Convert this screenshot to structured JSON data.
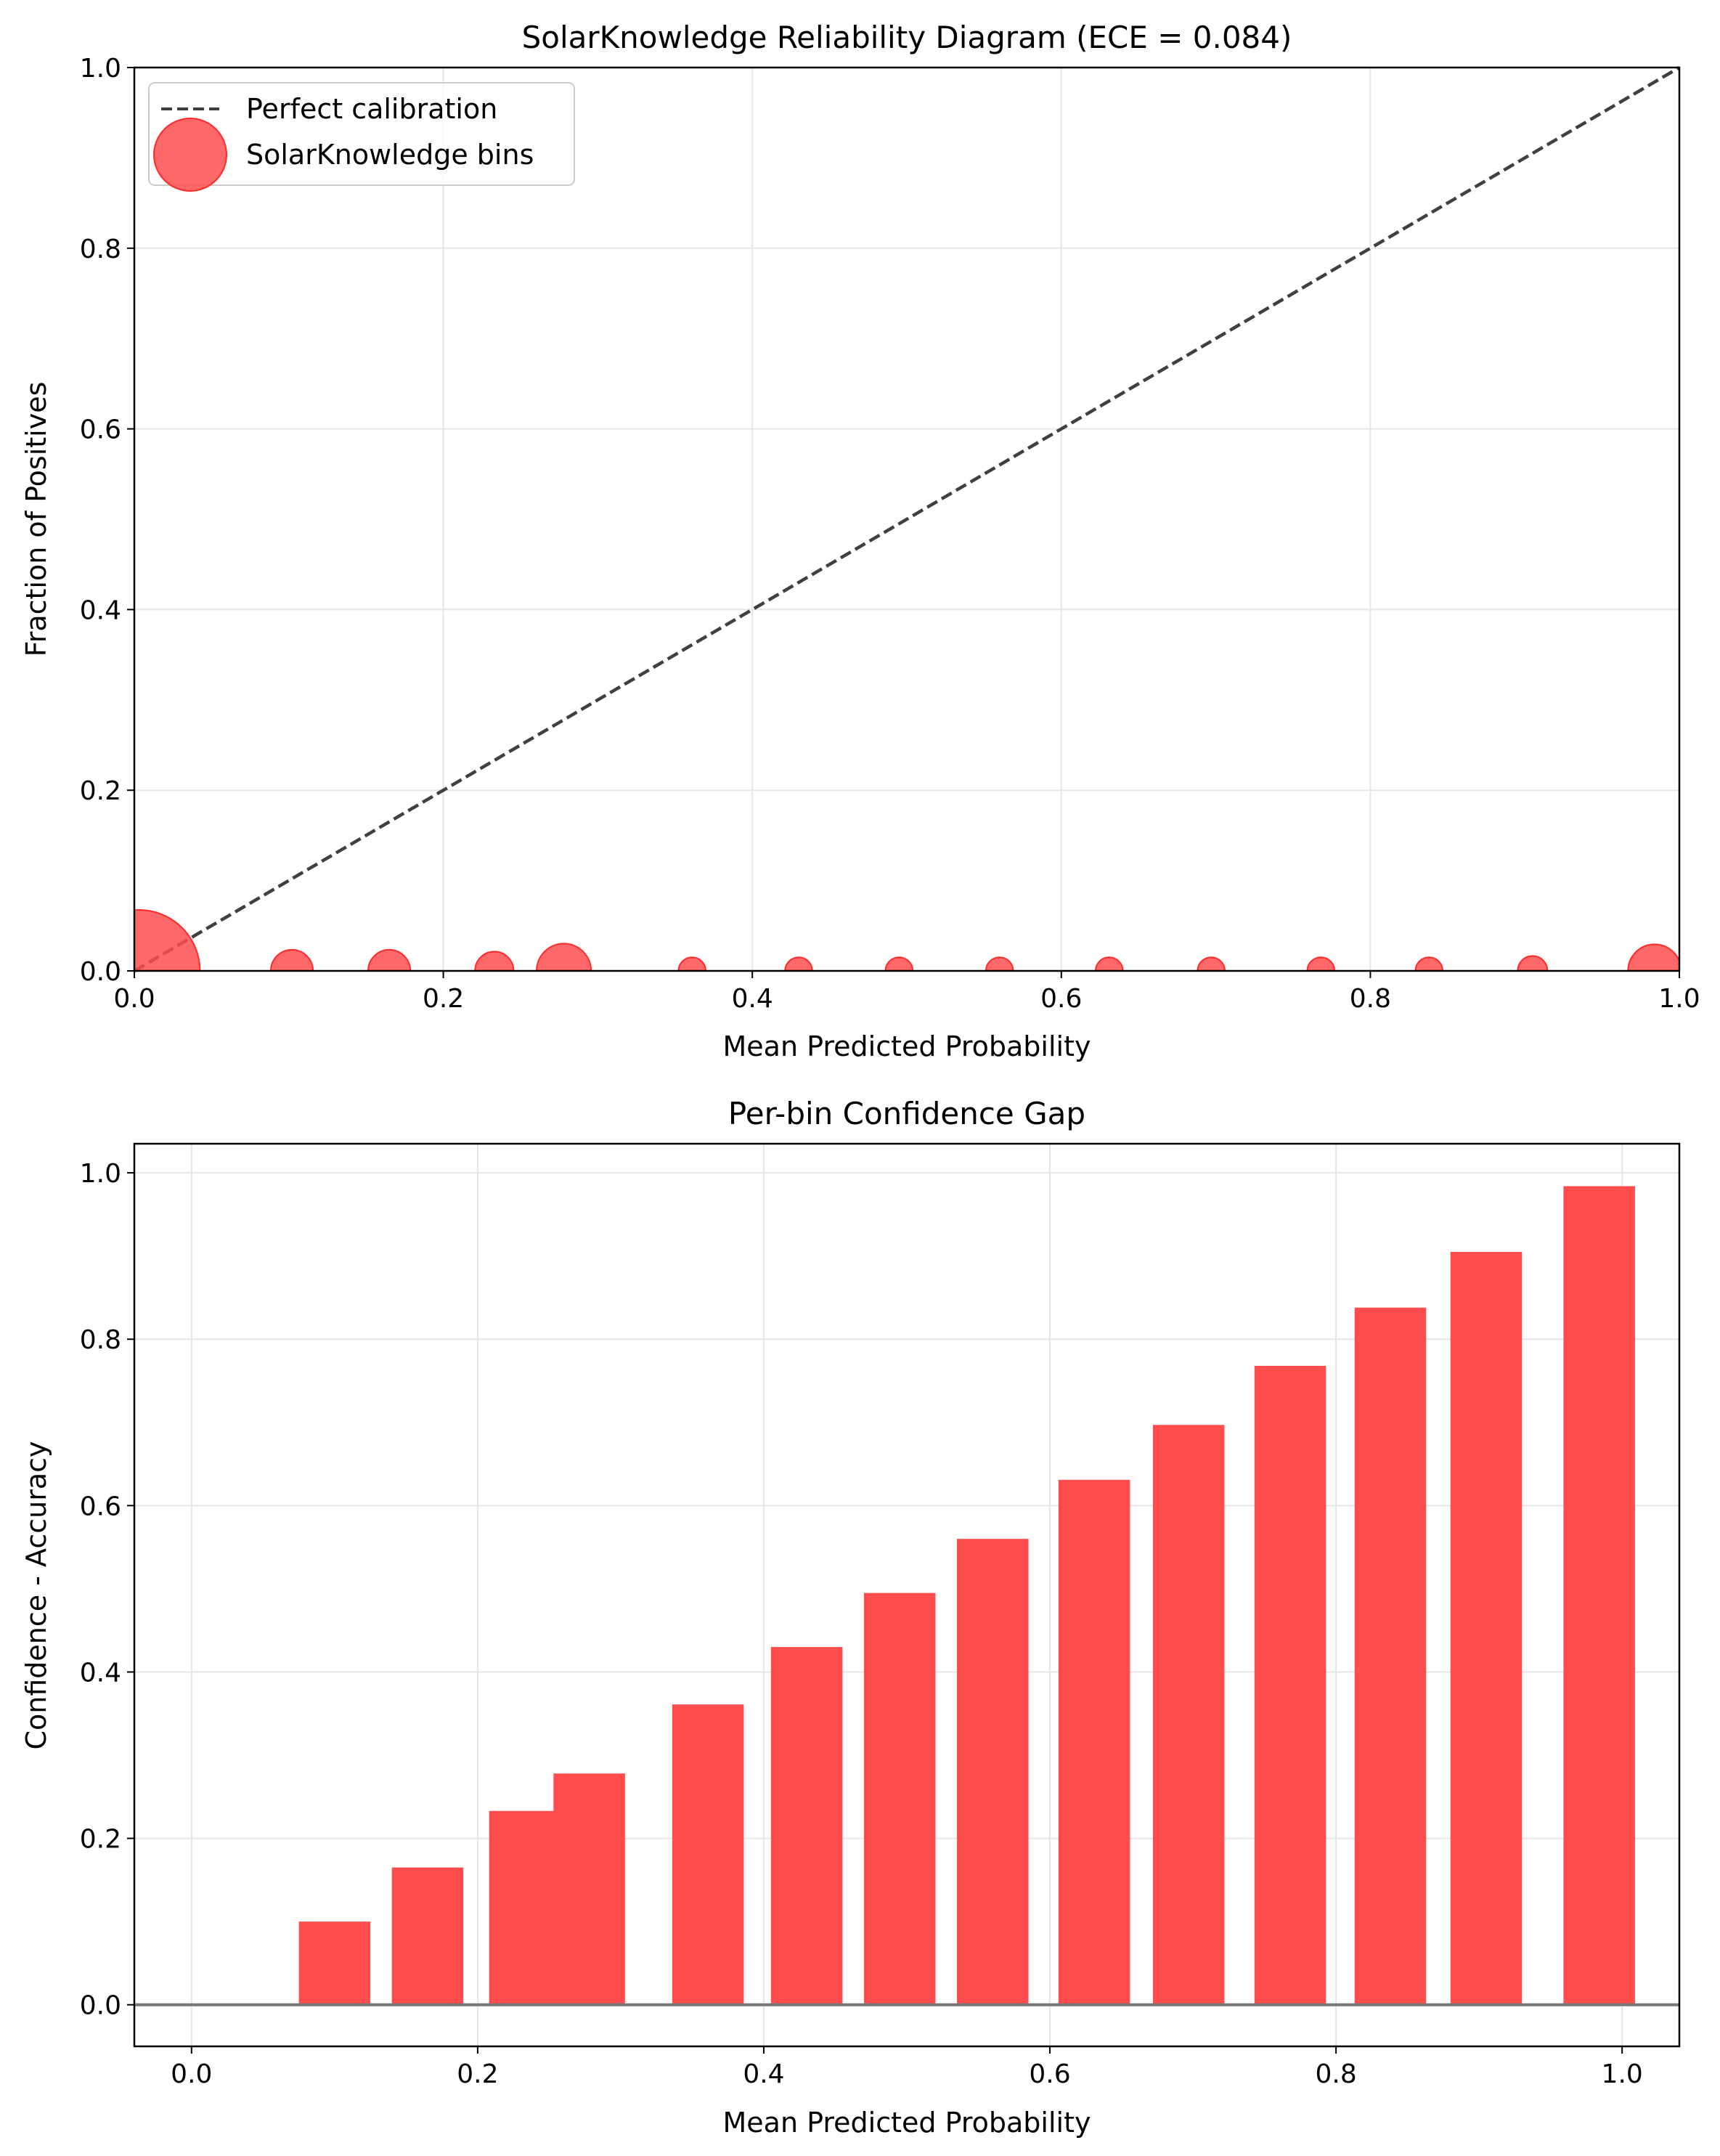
{
  "chart_data": [
    {
      "type": "scatter",
      "title": "SolarKnowledge Reliability Diagram (ECE = 0.084)",
      "xlabel": "Mean Predicted Probability",
      "ylabel": "Fraction of Positives",
      "xlim": [
        0.0,
        1.0
      ],
      "ylim": [
        0.0,
        1.0
      ],
      "xticks": [
        "0.0",
        "0.2",
        "0.4",
        "0.6",
        "0.8",
        "1.0"
      ],
      "yticks": [
        "0.0",
        "0.2",
        "0.4",
        "0.6",
        "0.8",
        "1.0"
      ],
      "grid": true,
      "legend": {
        "position": "upper-left",
        "entries": [
          "Perfect calibration",
          "SolarKnowledge bins"
        ]
      },
      "reference_line": {
        "name": "Perfect calibration",
        "x": [
          0,
          1
        ],
        "y": [
          0,
          1
        ],
        "style": "dashed",
        "color": "#404040"
      },
      "series": [
        {
          "name": "SolarKnowledge bins",
          "color": "#ff4d4d",
          "x": [
            0.003,
            0.102,
            0.165,
            0.233,
            0.278,
            0.361,
            0.43,
            0.495,
            0.56,
            0.631,
            0.697,
            0.768,
            0.838,
            0.905,
            0.984
          ],
          "y": [
            0,
            0,
            0,
            0,
            0,
            0,
            0,
            0,
            0,
            0,
            0,
            0,
            0,
            0,
            0
          ],
          "relative_size": [
            1.0,
            0.12,
            0.12,
            0.1,
            0.2,
            0.05,
            0.05,
            0.05,
            0.05,
            0.05,
            0.05,
            0.05,
            0.05,
            0.06,
            0.19
          ]
        }
      ]
    },
    {
      "type": "bar",
      "title": "Per-bin Confidence Gap",
      "xlabel": "Mean Predicted Probability",
      "ylabel": "Confidence - Accuracy",
      "xlim": [
        -0.04,
        1.04
      ],
      "ylim": [
        -0.05,
        1.035
      ],
      "xticks": [
        "0.0",
        "0.2",
        "0.4",
        "0.6",
        "0.8",
        "1.0"
      ],
      "yticks": [
        "0.0",
        "0.2",
        "0.4",
        "0.6",
        "0.8",
        "1.0"
      ],
      "grid": true,
      "color": "#ff4d4d",
      "bar_width_data": 0.05,
      "zero_line": true,
      "x": [
        0.0,
        0.1,
        0.165,
        0.233,
        0.278,
        0.361,
        0.43,
        0.495,
        0.56,
        0.631,
        0.697,
        0.768,
        0.838,
        0.905,
        0.984
      ],
      "values": [
        0.0,
        0.1,
        0.165,
        0.233,
        0.278,
        0.361,
        0.43,
        0.495,
        0.56,
        0.631,
        0.697,
        0.768,
        0.838,
        0.905,
        0.984
      ]
    }
  ]
}
